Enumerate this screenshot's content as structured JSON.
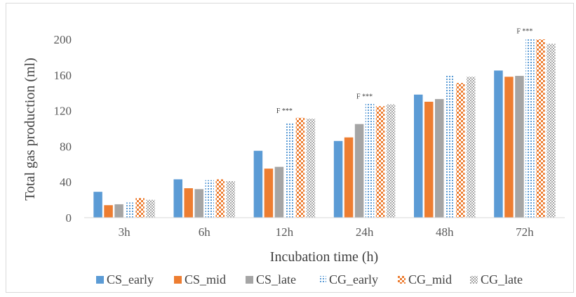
{
  "chart_data": {
    "type": "bar",
    "categories": [
      "3h",
      "6h",
      "12h",
      "24h",
      "48h",
      "72h"
    ],
    "xlabel": "Incubation time (h)",
    "ylabel": "Total gas production (ml)",
    "ylim": [
      0,
      200
    ],
    "yticks": [
      0,
      40,
      80,
      120,
      160,
      200
    ],
    "grid": false,
    "legend_position": "bottom",
    "series": [
      {
        "name": "CS_early",
        "color": "#5b9bd5",
        "pattern": "solid",
        "values": [
          29,
          43,
          75,
          86,
          138,
          165
        ]
      },
      {
        "name": "CS_mid",
        "color": "#ed7d31",
        "pattern": "solid",
        "values": [
          14,
          33,
          55,
          90,
          130,
          158
        ]
      },
      {
        "name": "CS_late",
        "color": "#a5a5a5",
        "pattern": "solid",
        "values": [
          15,
          32,
          57,
          105,
          133,
          159
        ]
      },
      {
        "name": "CG_early",
        "color": "#5b9bd5",
        "pattern": "dots",
        "values": [
          17,
          42,
          107,
          128,
          160,
          201
        ]
      },
      {
        "name": "CG_mid",
        "color": "#ed7d31",
        "pattern": "checker",
        "values": [
          22,
          43,
          112,
          125,
          151,
          200
        ]
      },
      {
        "name": "CG_late",
        "color": "#a5a5a5",
        "pattern": "grid",
        "values": [
          20,
          41,
          111,
          127,
          158,
          195
        ]
      }
    ],
    "annotations": [
      {
        "category": "12h",
        "text": "F ***"
      },
      {
        "category": "24h",
        "text": "F ***"
      },
      {
        "category": "72h",
        "text": "F ***"
      }
    ]
  }
}
